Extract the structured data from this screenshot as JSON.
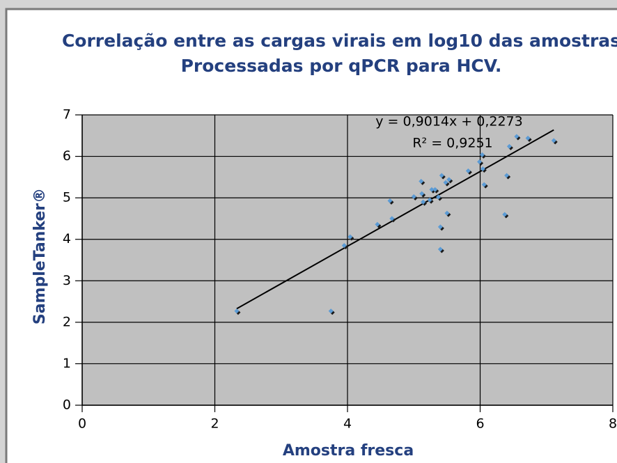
{
  "chart_data": {
    "type": "scatter",
    "title": [
      "Correlação entre as cargas virais em log10 das amostras",
      "Processadas por qPCR para HCV."
    ],
    "x_label": "Amostra fresca",
    "y_label": "SampleTanker®",
    "xlim": [
      0,
      8
    ],
    "xticks": [
      0,
      2,
      4,
      6,
      8
    ],
    "ylim": [
      0,
      7
    ],
    "yticks": [
      0,
      1,
      2,
      3,
      4,
      5,
      6,
      7
    ],
    "grid": true,
    "plot_background": "#c0c0c0",
    "point_color": "#5b9bd5",
    "series": [
      {
        "x": [
          2.33,
          3.75,
          3.95,
          4.04,
          4.45,
          4.67,
          4.64,
          5.0,
          5.11,
          5.12,
          5.14,
          5.27,
          5.32,
          5.24,
          5.37,
          5.42,
          5.48,
          5.53,
          5.5,
          5.4,
          5.4,
          5.82,
          5.99,
          6.03,
          6.04,
          6.06,
          6.4,
          6.37,
          6.44,
          6.55,
          6.72,
          7.11
        ],
        "values": [
          2.27,
          2.27,
          3.85,
          4.06,
          4.36,
          4.5,
          4.93,
          5.03,
          5.4,
          5.1,
          4.9,
          5.2,
          5.2,
          4.95,
          5.02,
          5.54,
          5.37,
          5.44,
          4.63,
          4.3,
          3.76,
          5.65,
          5.87,
          6.04,
          5.7,
          5.32,
          5.54,
          4.6,
          6.24,
          6.48,
          6.44,
          6.38
        ]
      }
    ],
    "trendline": {
      "slope": 0.9014,
      "intercept": 0.2273,
      "label": "y = 0,9014x + 0,2273",
      "r2_label": "R² = 0,9251"
    }
  }
}
